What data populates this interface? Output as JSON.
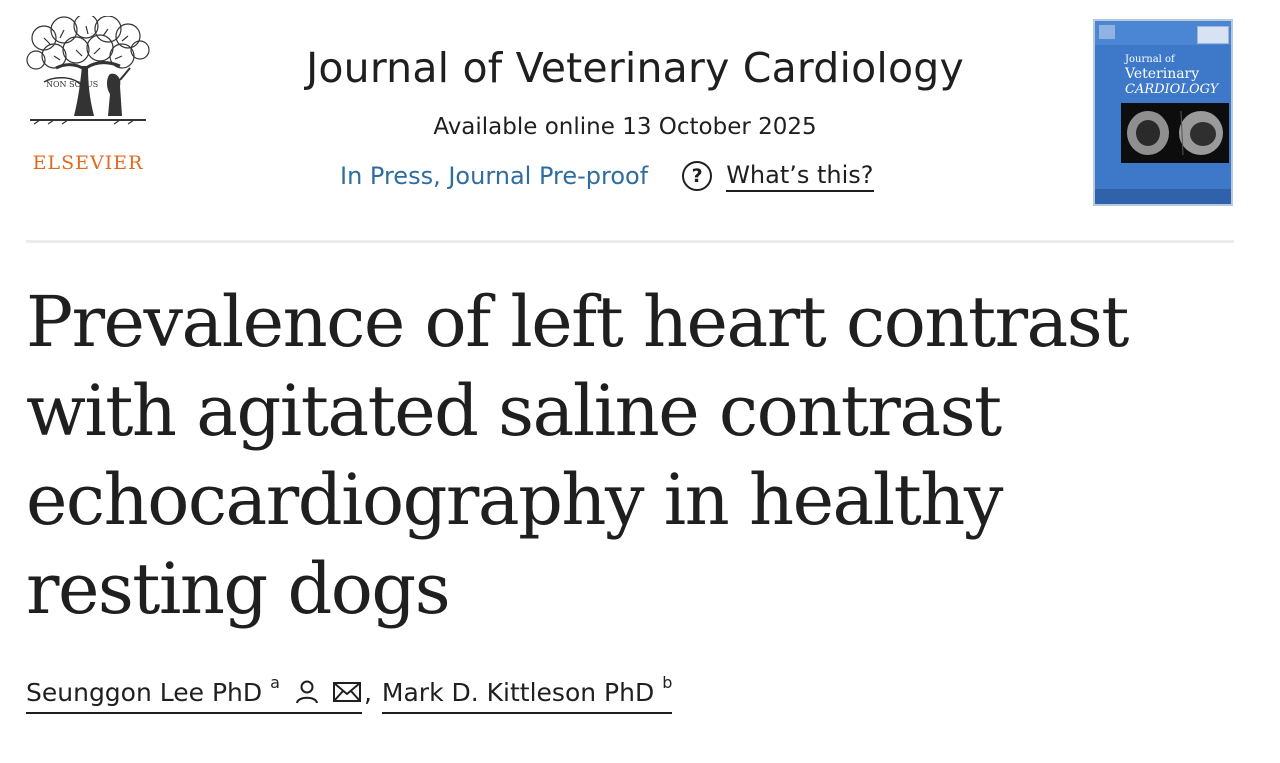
{
  "publisher": {
    "name": "ELSEVIER",
    "motto": "NON SOLUS",
    "logo_icon": "elsevier-tree-logo",
    "brand_color": "#e06a1e"
  },
  "journal": {
    "title": "Journal of Veterinary Cardiology",
    "available_online": "Available online 13 October 2025",
    "status": "In Press, Journal Pre-proof",
    "help_icon": "question-circle-icon",
    "help_link": "What’s this?",
    "status_color": "#2f6c9f"
  },
  "cover": {
    "line1": "Journal of",
    "line2": "Veterinary",
    "line3": "CARDIOLOGY",
    "color": "#3d78c9"
  },
  "article": {
    "title": "Prevalence of left heart contrast with agitated saline contrast echocardiography in healthy resting dogs"
  },
  "authors": [
    {
      "name": "Seunggon Lee PhD",
      "affiliation": "a",
      "icons": [
        "person-icon",
        "envelope-icon"
      ]
    },
    {
      "name": "Mark D. Kittleson PhD",
      "affiliation": "b"
    }
  ],
  "separator": ","
}
